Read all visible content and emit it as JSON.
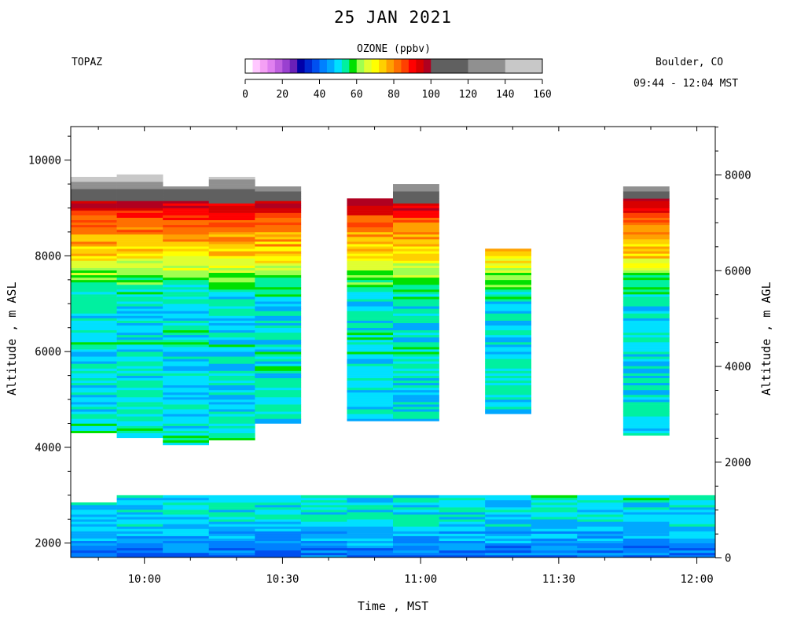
{
  "title": "25 JAN 2021",
  "site": "TOPAZ",
  "location": "Boulder, CO",
  "time_range": "09:44 - 12:04 MST",
  "colorbar": {
    "title": "OZONE (ppbv)",
    "ticks": [
      "0",
      "20",
      "40",
      "60",
      "80",
      "100",
      "120",
      "140",
      "160"
    ],
    "segments": [
      {
        "from": 0,
        "to": 4,
        "color": "#ffffff"
      },
      {
        "from": 4,
        "to": 8,
        "color": "#ffc8ff"
      },
      {
        "from": 8,
        "to": 12,
        "color": "#f5a0f5"
      },
      {
        "from": 12,
        "to": 16,
        "color": "#e080f0"
      },
      {
        "from": 16,
        "to": 20,
        "color": "#c060e0"
      },
      {
        "from": 20,
        "to": 24,
        "color": "#9a40d0"
      },
      {
        "from": 24,
        "to": 28,
        "color": "#6a20b8"
      },
      {
        "from": 28,
        "to": 32,
        "color": "#0000a8"
      },
      {
        "from": 32,
        "to": 36,
        "color": "#0028d0"
      },
      {
        "from": 36,
        "to": 40,
        "color": "#0050f0"
      },
      {
        "from": 40,
        "to": 44,
        "color": "#0080ff"
      },
      {
        "from": 44,
        "to": 48,
        "color": "#00a8ff"
      },
      {
        "from": 48,
        "to": 52,
        "color": "#00e0ff"
      },
      {
        "from": 52,
        "to": 56,
        "color": "#00f0a0"
      },
      {
        "from": 56,
        "to": 60,
        "color": "#00e000"
      },
      {
        "from": 60,
        "to": 64,
        "color": "#a0ff50"
      },
      {
        "from": 64,
        "to": 68,
        "color": "#e0ff30"
      },
      {
        "from": 68,
        "to": 72,
        "color": "#ffff00"
      },
      {
        "from": 72,
        "to": 76,
        "color": "#ffd000"
      },
      {
        "from": 76,
        "to": 80,
        "color": "#ffa000"
      },
      {
        "from": 80,
        "to": 84,
        "color": "#ff7000"
      },
      {
        "from": 84,
        "to": 88,
        "color": "#ff4000"
      },
      {
        "from": 88,
        "to": 92,
        "color": "#ff0000"
      },
      {
        "from": 92,
        "to": 96,
        "color": "#d80000"
      },
      {
        "from": 96,
        "to": 100,
        "color": "#b00020"
      },
      {
        "from": 100,
        "to": 120,
        "color": "#606060"
      },
      {
        "from": 120,
        "to": 140,
        "color": "#909090"
      },
      {
        "from": 140,
        "to": 160,
        "color": "#c8c8c8"
      }
    ]
  },
  "chart_data": {
    "type": "heatmap",
    "title": "25 JAN 2021",
    "xlabel": "Time , MST",
    "ylabel": "Altitude , m ASL",
    "ylabel_right": "Altitude , m AGL",
    "x_ticks": [
      "10:00",
      "10:30",
      "11:00",
      "11:30",
      "12:00"
    ],
    "x_tick_minutes": [
      600,
      630,
      660,
      690,
      720
    ],
    "xlim_minutes": [
      584,
      724
    ],
    "ylim": [
      1700,
      10700
    ],
    "y_ticks": [
      2000,
      4000,
      6000,
      8000,
      10000
    ],
    "y2_ticks": [
      0,
      2000,
      4000,
      6000,
      8000
    ],
    "y2_offset": 1690,
    "grid": false,
    "columns": [
      {
        "t0": 584,
        "t1": 594,
        "bot": 4300,
        "top": 9650,
        "low_top": 2850
      },
      {
        "t0": 594,
        "t1": 604,
        "bot": 4200,
        "top": 9700,
        "low_top": 3000
      },
      {
        "t0": 604,
        "t1": 614,
        "bot": 4050,
        "top": 9450,
        "low_top": 3000
      },
      {
        "t0": 614,
        "t1": 624,
        "bot": 4150,
        "top": 9650,
        "low_top": 3000
      },
      {
        "t0": 624,
        "t1": 634,
        "bot": 4500,
        "top": 9450,
        "low_top": 3000
      },
      {
        "t0": 634,
        "t1": 644,
        "bot": null,
        "top": null,
        "low_top": 3000
      },
      {
        "t0": 644,
        "t1": 654,
        "bot": 4550,
        "top": 9200,
        "low_top": 3000
      },
      {
        "t0": 654,
        "t1": 664,
        "bot": 4550,
        "top": 9500,
        "low_top": 3000
      },
      {
        "t0": 664,
        "t1": 674,
        "bot": null,
        "top": null,
        "low_top": 3000
      },
      {
        "t0": 674,
        "t1": 684,
        "bot": 4700,
        "top": 8150,
        "low_top": 3000
      },
      {
        "t0": 684,
        "t1": 694,
        "bot": null,
        "top": null,
        "low_top": 3000
      },
      {
        "t0": 694,
        "t1": 704,
        "bot": null,
        "top": null,
        "low_top": 3000
      },
      {
        "t0": 704,
        "t1": 714,
        "bot": 4250,
        "top": 9450,
        "low_top": 3000
      },
      {
        "t0": 714,
        "t1": 724,
        "bot": null,
        "top": null,
        "low_top": 3000
      }
    ],
    "profile": [
      {
        "alt": 1700,
        "ozone": 40
      },
      {
        "alt": 2000,
        "ozone": 45
      },
      {
        "alt": 2500,
        "ozone": 50
      },
      {
        "alt": 3000,
        "ozone": 52
      },
      {
        "alt": 4500,
        "ozone": 52
      },
      {
        "alt": 5000,
        "ozone": 50
      },
      {
        "alt": 6000,
        "ozone": 52
      },
      {
        "alt": 7000,
        "ozone": 50
      },
      {
        "alt": 7400,
        "ozone": 56
      },
      {
        "alt": 7700,
        "ozone": 64
      },
      {
        "alt": 8000,
        "ozone": 72
      },
      {
        "alt": 8400,
        "ozone": 78
      },
      {
        "alt": 8800,
        "ozone": 86
      },
      {
        "alt": 9100,
        "ozone": 96
      },
      {
        "alt": 9300,
        "ozone": 110
      },
      {
        "alt": 9600,
        "ozone": 145
      }
    ]
  }
}
